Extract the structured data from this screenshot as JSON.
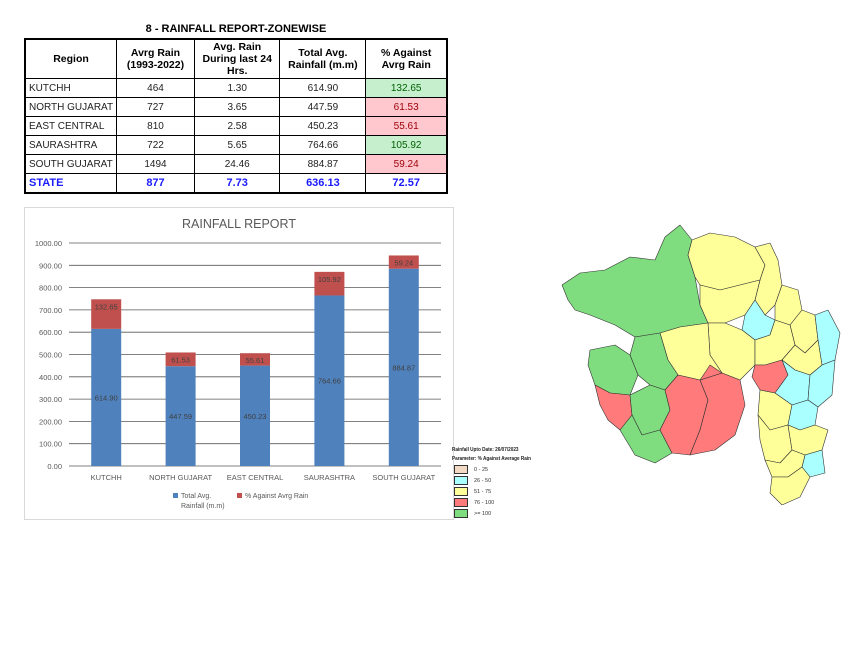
{
  "report": {
    "title": "8 - RAINFALL REPORT-ZONEWISE",
    "columns": [
      "Region",
      "Avrg Rain (1993-2022)",
      "Avg. Rain During last 24 Hrs.",
      "Total Avg. Rainfall (m.m)",
      "% Against Avrg Rain"
    ],
    "rows": [
      {
        "region": "KUTCHH",
        "avrg_rain": "464",
        "last_24": "1.30",
        "total": "614.90",
        "pct": "132.65",
        "status": "good"
      },
      {
        "region": "NORTH GUJARAT",
        "avrg_rain": "727",
        "last_24": "3.65",
        "total": "447.59",
        "pct": "61.53",
        "status": "bad"
      },
      {
        "region": "EAST CENTRAL",
        "avrg_rain": "810",
        "last_24": "2.58",
        "total": "450.23",
        "pct": "55.61",
        "status": "bad"
      },
      {
        "region": "SAURASHTRA",
        "avrg_rain": "722",
        "last_24": "5.65",
        "total": "764.66",
        "pct": "105.92",
        "status": "good"
      },
      {
        "region": "SOUTH GUJARAT",
        "avrg_rain": "1494",
        "last_24": "24.46",
        "total": "884.87",
        "pct": "59.24",
        "status": "bad"
      }
    ],
    "state": {
      "region": "STATE",
      "avrg_rain": "877",
      "last_24": "7.73",
      "total": "636.13",
      "pct": "72.57"
    }
  },
  "colors": {
    "good_bg": "#c6efce",
    "bad_bg": "#ffc7ce",
    "state_text": "#1a1aff",
    "series_total": "#4f81bd",
    "series_pct": "#c0504d"
  },
  "chart_data": {
    "type": "bar",
    "stacked": true,
    "title": "RAINFALL REPORT",
    "categories": [
      "KUTCHH",
      "NORTH GUJARAT",
      "EAST CENTRAL",
      "SAURASHTRA",
      "SOUTH GUJARAT"
    ],
    "series": [
      {
        "name": "Total Avg. Rainfall (m.m)",
        "values": [
          614.9,
          447.59,
          450.23,
          764.66,
          884.87
        ],
        "color": "#4f81bd"
      },
      {
        "name": "% Against Avrg Rain",
        "values": [
          132.65,
          61.53,
          55.61,
          105.92,
          59.24
        ],
        "color": "#c0504d"
      }
    ],
    "ylim": [
      0,
      1000
    ],
    "yticks": [
      0,
      100,
      200,
      300,
      400,
      500,
      600,
      700,
      800,
      900,
      1000
    ],
    "ytick_format": "0.00",
    "grid": true,
    "legend": "bottom",
    "xlabel": "",
    "ylabel": ""
  },
  "map": {
    "legend_title": "Rainfall Upto Date: 26/07/2023",
    "legend_param": "Parameter: % Against Average Rain",
    "legend_items": [
      {
        "label": "0 - 25",
        "color": "#f2d9c4"
      },
      {
        "label": "26 - 50",
        "color": "#aaffff"
      },
      {
        "label": "51 - 75",
        "color": "#ffff99"
      },
      {
        "label": "76 - 100",
        "color": "#ff7a7a"
      },
      {
        "label": ">= 100",
        "color": "#7fdc7f"
      }
    ]
  }
}
